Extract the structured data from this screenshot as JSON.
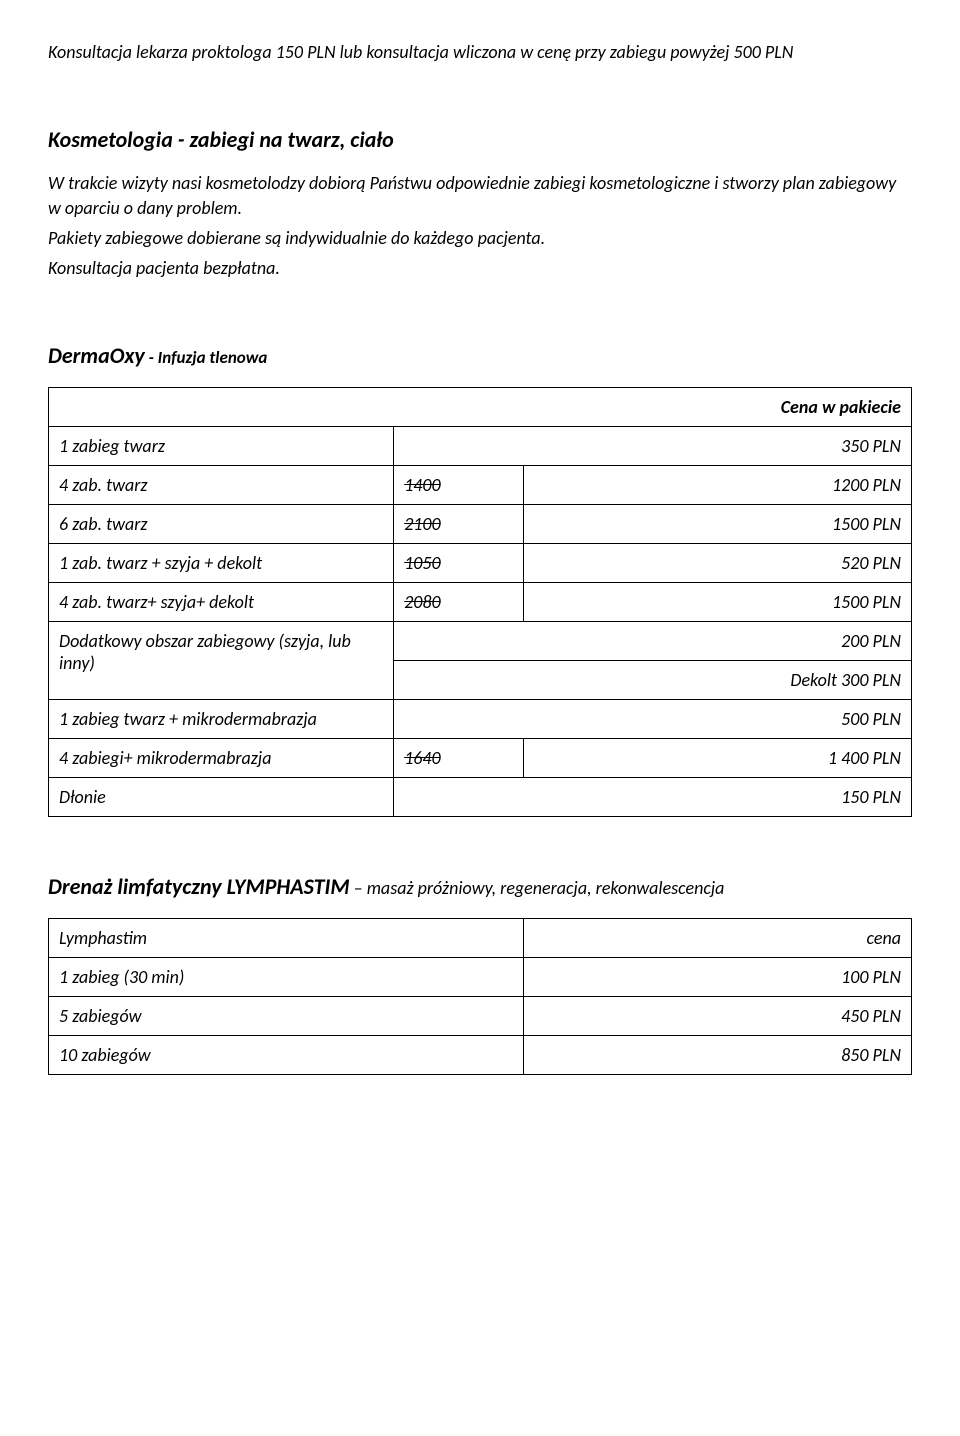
{
  "intro": {
    "p1": "Konsultacja lekarza proktologa 150 PLN lub konsultacja wliczona w cenę przy zabiegu powyżej 500 PLN"
  },
  "kosmetologia": {
    "heading": "Kosmetologia - zabiegi na twarz, ciało",
    "p1": "W trakcie wizyty nasi kosmetolodzy dobiorą Państwu odpowiednie zabiegi kosmetologiczne i stworzy plan zabiegowy w oparciu o dany problem.",
    "p2": "Pakiety zabiegowe dobierane są indywidualnie do każdego pacjenta.",
    "p3": "Konsultacja pacjenta bezpłatna."
  },
  "dermaoxy": {
    "heading_main": "DermaOxy",
    "heading_sub": " - Infuzja tlenowa",
    "header_price": "Cena w pakiecie",
    "rows": {
      "r1": {
        "label": "1 zabieg twarz",
        "old": "",
        "price": "350 PLN"
      },
      "r2": {
        "label": "4 zab. twarz",
        "old": "1400",
        "price": "1200 PLN"
      },
      "r3": {
        "label": "6 zab. twarz",
        "old": "2100",
        "price": "1500 PLN"
      },
      "r4": {
        "label": "1 zab. twarz + szyja + dekolt",
        "old": "1050",
        "price": "520 PLN"
      },
      "r5": {
        "label": "4 zab. twarz+ szyja+ dekolt",
        "old": "2080",
        "price": "1500 PLN"
      },
      "r6": {
        "label": "Dodatkowy obszar zabiegowy (szyja, lub  inny)",
        "price_a": "200 PLN",
        "price_b": "Dekolt  300 PLN"
      },
      "r7": {
        "label": "1 zabieg twarz + mikrodermabrazja",
        "old": "",
        "price": "500 PLN"
      },
      "r8": {
        "label": "4 zabiegi+ mikrodermabrazja",
        "old": "1640",
        "price": "1 400 PLN"
      },
      "r9": {
        "label": "Dłonie",
        "price": "150 PLN"
      }
    }
  },
  "lymph": {
    "heading_main": "Drenaż limfatyczny LYMPHASTIM",
    "heading_sub": " – masaż próżniowy, regeneracja, rekonwalescencja",
    "header_label": "Lymphastim",
    "header_price": "cena",
    "rows": {
      "r1": {
        "label": "1 zabieg (30 min)",
        "price": "100 PLN"
      },
      "r2": {
        "label": "5 zabiegów",
        "price": "450 PLN"
      },
      "r3": {
        "label": "10 zabiegów",
        "price": "850 PLN"
      }
    }
  }
}
